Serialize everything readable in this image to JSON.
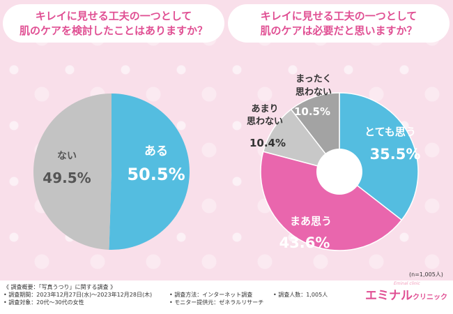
{
  "colors": {
    "blue": "#54bde0",
    "gray": "#c3c3c3",
    "pink": "#e966ad",
    "light_gray": "#c8c8c8",
    "dark_gray": "#a3a3a3",
    "accent": "#e04f93"
  },
  "questions": {
    "left_line1": "キレイに見せる工夫の一つとして",
    "left_line2": "肌のケアを検討したことはありますか？",
    "right_line1": "キレイに見せる工夫の一つとして",
    "right_line2": "肌のケアは必要だと思いますか？"
  },
  "chart_data": [
    {
      "type": "pie",
      "title": "キレイに見せる工夫の一つとして肌のケアを検討したことはありますか？",
      "slices": [
        {
          "label": "ある",
          "value": 50.5,
          "value_text": "50.5%",
          "color": "#54bde0"
        },
        {
          "label": "ない",
          "value": 49.5,
          "value_text": "49.5%",
          "color": "#c3c3c3"
        }
      ]
    },
    {
      "type": "pie",
      "title": "キレイに見せる工夫の一つとして肌のケアは必要だと思いますか？",
      "donut": true,
      "slices": [
        {
          "label": "とても思う",
          "value": 35.5,
          "value_text": "35.5%",
          "color": "#54bde0"
        },
        {
          "label": "まあ思う",
          "value": 43.6,
          "value_text": "43.6%",
          "color": "#e966ad"
        },
        {
          "label": "あまり思わない",
          "label_lines": [
            "あまり",
            "思わない"
          ],
          "value": 10.4,
          "value_text": "10.4%",
          "color": "#c8c8c8"
        },
        {
          "label": "まったく思わない",
          "label_lines": [
            "まったく",
            "思わない"
          ],
          "value": 10.5,
          "value_text": "10.5%",
          "color": "#a3a3a3"
        }
      ]
    }
  ],
  "sample_note": "(n=1,005人)",
  "footer": {
    "summary": "《 調査概要：「写真うつり」に関する調査 》",
    "period": "• 調査期間：2023年12月27日(水)〜2023年12月28日(木)",
    "target": "• 調査対象：20代〜30代の女性",
    "method": "• 調査方法：インターネット調査",
    "provider": "• モニター提供元：ゼネラルリサーチ",
    "count": "• 調査人数：1,005人"
  },
  "brand": {
    "name": "エミナル",
    "sub": "クリニック",
    "script": "Eminal clinic"
  }
}
